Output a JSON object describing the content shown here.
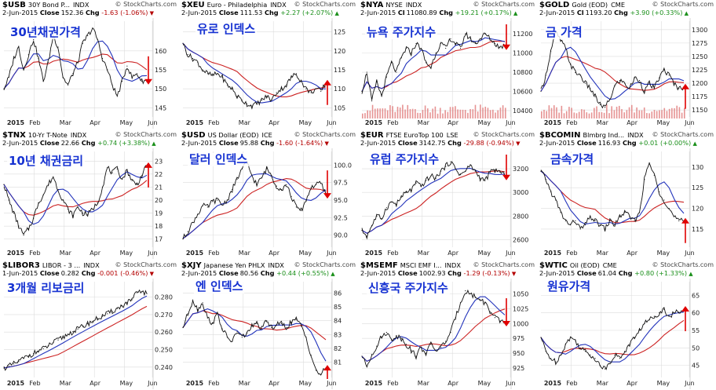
{
  "colors": {
    "price": "#111111",
    "ma_fast": "#2233bb",
    "ma_slow": "#cc2222",
    "volume": "#e28080",
    "arrow": "#e00000",
    "korean_label": "#1733d2",
    "grid": "#dcdcdc"
  },
  "watermark": "© StockCharts.com",
  "charts": [
    {
      "symbol": "$USB",
      "name": "30Y Bond P...",
      "exchange": "INDX",
      "date": "2-Jun-2015",
      "close_label": "Close",
      "close": "152.36",
      "chg_label": "Chg",
      "chg": "-1.63 (-1.06%)",
      "chg_dir": "down",
      "korean_label": "30년채권가격",
      "chart_data": {
        "type": "line",
        "title": "30Y Bond P...",
        "x_labels": [
          "2015",
          "Feb",
          "Mar",
          "Apr",
          "May",
          "Jun"
        ],
        "y_ticks": [
          "160",
          "155",
          "150",
          "145"
        ],
        "ylim": [
          143,
          167
        ],
        "series": [
          {
            "values": [
              150,
              153,
              158,
              161,
              155,
              159,
              163,
              158,
              152,
              157,
              164,
              161,
              153,
              151,
              154,
              157,
              162,
              164,
              166,
              163,
              158,
              155,
              151,
              148,
              152,
              156,
              153,
              154,
              152,
              152.36
            ]
          }
        ],
        "arrow": "down",
        "volume": false
      }
    },
    {
      "symbol": "$XEU",
      "name": "Euro - Philadelphia",
      "exchange": "INDX",
      "date": "2-Jun-2015",
      "close_label": "Close",
      "close": "111.53",
      "chg_label": "Chg",
      "chg": "+2.27 (+2.07%)",
      "chg_dir": "up",
      "korean_label": "유로 인덱스",
      "chart_data": {
        "type": "line",
        "title": "Euro - Philadelphia",
        "x_labels": [
          "2015",
          "Feb",
          "Mar",
          "Apr",
          "May",
          "Jun"
        ],
        "y_ticks": [
          "125",
          "120",
          "115",
          "110",
          "105"
        ],
        "ylim": [
          103,
          127
        ],
        "series": [
          {
            "values": [
              122,
              119,
              118,
              117,
              115,
              114,
              113.5,
              114,
              113,
              111,
              110,
              108,
              107,
              106,
              105.5,
              106,
              107,
              108,
              107,
              109,
              110,
              111,
              113,
              114,
              112,
              110,
              109,
              110,
              109.3,
              111.53
            ]
          }
        ],
        "arrow": "up",
        "volume": false
      }
    },
    {
      "symbol": "$NYA",
      "name": "NYSE",
      "exchange": "INDX",
      "date": "2-Jun-2015",
      "close_label": "Cl",
      "close": "11080.89",
      "chg_label": "Chg",
      "chg": "+19.21 (+0.17%)",
      "chg_dir": "up",
      "korean_label": "뉴욕 주가지수",
      "chart_data": {
        "type": "line",
        "title": "NYSE",
        "x_labels": [
          "2015",
          "Feb",
          "Mar",
          "Apr",
          "May",
          "Jun"
        ],
        "y_ticks": [
          "11200",
          "11000",
          "10800",
          "10600",
          "10400"
        ],
        "ylim": [
          10350,
          11300
        ],
        "series": [
          {
            "values": [
              10600,
              10800,
              10500,
              10700,
              10550,
              10750,
              10900,
              10800,
              10950,
              11050,
              11000,
              11100,
              11050,
              10900,
              10850,
              11000,
              11100,
              11050,
              11150,
              11100,
              11050,
              11200,
              11150,
              11100,
              11150,
              11200,
              11150,
              11100,
              11060,
              11080.89
            ]
          }
        ],
        "arrow": "down",
        "volume": true
      }
    },
    {
      "symbol": "$GOLD",
      "name": "Gold (EOD)",
      "exchange": "CME",
      "date": "2-Jun-2015",
      "close_label": "Cl",
      "close": "1193.20",
      "chg_label": "Chg",
      "chg": "+3.90 (+0.33%)",
      "chg_dir": "up",
      "korean_label": "금 가격",
      "chart_data": {
        "type": "line",
        "title": "Gold (EOD)",
        "x_labels": [
          "2015",
          "Feb",
          "Mar",
          "Apr",
          "May",
          "Jun"
        ],
        "y_ticks": [
          "1300",
          "1275",
          "1250",
          "1225",
          "1200",
          "1175",
          "1150"
        ],
        "ylim": [
          1140,
          1310
        ],
        "series": [
          {
            "values": [
              1185,
              1215,
              1260,
              1295,
              1280,
              1265,
              1235,
              1220,
              1215,
              1200,
              1190,
              1175,
              1160,
              1155,
              1170,
              1195,
              1205,
              1200,
              1190,
              1210,
              1205,
              1185,
              1200,
              1190,
              1210,
              1225,
              1215,
              1200,
              1190,
              1193.2
            ]
          }
        ],
        "arrow": "up",
        "volume": true
      }
    },
    {
      "symbol": "$TNX",
      "name": "10-Yr T-Note",
      "exchange": "INDX",
      "date": "2-Jun-2015",
      "close_label": "Close",
      "close": "22.66",
      "chg_label": "Chg",
      "chg": "+0.74 (+3.38%)",
      "chg_dir": "up",
      "korean_label": "10년 채권금리",
      "chart_data": {
        "type": "line",
        "title": "10-Yr T-Note",
        "x_labels": [
          "2015",
          "Feb",
          "Mar",
          "Apr",
          "May",
          "Jun"
        ],
        "y_ticks": [
          "23",
          "22",
          "21",
          "20",
          "19",
          "18",
          "17"
        ],
        "ylim": [
          16.5,
          23.5
        ],
        "series": [
          {
            "values": [
              21.2,
              20.0,
              19.0,
              18.0,
              17.3,
              17.8,
              18.6,
              19.8,
              20.4,
              21.2,
              21.8,
              20.8,
              20.0,
              19.3,
              18.8,
              19.5,
              19.0,
              18.9,
              19.3,
              19.8,
              21.0,
              22.5,
              22.1,
              22.4,
              21.6,
              22.3,
              21.5,
              21.2,
              21.9,
              22.66
            ]
          }
        ],
        "arrow": "up",
        "volume": false
      }
    },
    {
      "symbol": "$USD",
      "name": "US Dollar (EOD)",
      "exchange": "ICE",
      "date": "2-Jun-2015",
      "close_label": "Close",
      "close": "95.88",
      "chg_label": "Chg",
      "chg": "-1.60 (-1.64%)",
      "chg_dir": "down",
      "korean_label": "달러 인덱스",
      "chart_data": {
        "type": "line",
        "title": "US Dollar (EOD)",
        "x_labels": [
          "2015",
          "Feb",
          "Mar",
          "Apr",
          "May",
          "Jun"
        ],
        "y_ticks": [
          "100.0",
          "97.5",
          "95.0",
          "92.5",
          "90.0"
        ],
        "ylim": [
          88.5,
          101.5
        ],
        "series": [
          {
            "values": [
              89.5,
              90.5,
              91.8,
              93.0,
              94.2,
              94.0,
              94.8,
              95.0,
              94.3,
              95.0,
              96.5,
              98.0,
              99.5,
              100.3,
              98.5,
              97.2,
              98.2,
              99.5,
              98.5,
              97.0,
              96.5,
              97.2,
              95.5,
              94.0,
              93.5,
              95.0,
              96.8,
              97.2,
              97.4,
              95.88
            ]
          }
        ],
        "arrow": "down",
        "volume": false
      }
    },
    {
      "symbol": "$EUR",
      "name": "FTSE EuroTop 100",
      "exchange": "LSE",
      "date": "2-Jun-2015",
      "close_label": "Close",
      "close": "3142.75",
      "chg_label": "Chg",
      "chg": "-29.88 (-0.94%)",
      "chg_dir": "down",
      "korean_label": "유럽 주가지수",
      "chart_data": {
        "type": "line",
        "title": "FTSE EuroTop 100",
        "x_labels": [
          "2015",
          "Feb",
          "Mar",
          "Apr",
          "May",
          "Jun"
        ],
        "y_ticks": [
          "3200",
          "3000",
          "2800",
          "2600"
        ],
        "ylim": [
          2550,
          3320
        ],
        "series": [
          {
            "values": [
              2680,
              2630,
              2720,
              2800,
              2780,
              2870,
              2920,
              2900,
              2960,
              3000,
              3020,
              3080,
              3050,
              3100,
              3140,
              3120,
              3180,
              3220,
              3260,
              3200,
              3150,
              3180,
              3230,
              3180,
              3120,
              3100,
              3170,
              3190,
              3173,
              3142.75
            ]
          }
        ],
        "arrow": "down",
        "volume": false
      }
    },
    {
      "symbol": "$BCOMIN",
      "name": "Blmbrg Ind...",
      "exchange": "INDX",
      "date": "2-Jun-2015",
      "close_label": "Close",
      "close": "116.93",
      "chg_label": "Chg",
      "chg": "+0.01 (+0.00%)",
      "chg_dir": "up",
      "korean_label": "금속가격",
      "chart_data": {
        "type": "line",
        "title": "Blmbrg Ind...",
        "x_labels": [
          "2015",
          "Feb",
          "Mar",
          "Apr",
          "May",
          "Jun"
        ],
        "y_ticks": [
          "130",
          "125",
          "120",
          "115"
        ],
        "ylim": [
          111,
          133
        ],
        "series": [
          {
            "values": [
              129,
              127,
              124,
              122,
              119,
              117,
              116,
              117,
              115,
              116,
              118,
              117,
              116,
              115,
              117,
              116,
              118,
              119,
              118,
              117,
              119,
              127,
              131,
              128,
              124,
              122,
              120,
              118,
              117,
              116.93
            ]
          }
        ],
        "arrow": "up",
        "volume": false
      }
    },
    {
      "symbol": "$LIBOR3",
      "name": "LIBOR - 3 ...",
      "exchange": "INDX",
      "date": "1-Jun-2015",
      "close_label": "Close",
      "close": "0.282",
      "chg_label": "Chg",
      "chg": "-0.001 (-0.46%)",
      "chg_dir": "down",
      "korean_label": "3개월 리보금리",
      "chart_data": {
        "type": "line",
        "title": "LIBOR - 3 ...",
        "x_labels": [
          "2015",
          "Feb",
          "Mar",
          "Apr",
          "May",
          "Jun"
        ],
        "y_ticks": [
          "0.280",
          "0.270",
          "0.260",
          "0.250",
          "0.240"
        ],
        "ylim": [
          0.235,
          0.287
        ],
        "series": [
          {
            "values": [
              0.2395,
              0.2405,
              0.2418,
              0.2432,
              0.245,
              0.2465,
              0.2478,
              0.2492,
              0.2505,
              0.2522,
              0.254,
              0.2555,
              0.257,
              0.2588,
              0.2602,
              0.2618,
              0.2632,
              0.2648,
              0.2662,
              0.2678,
              0.269,
              0.2705,
              0.2718,
              0.2735,
              0.275,
              0.2768,
              0.2785,
              0.2825,
              0.2832,
              0.282
            ]
          }
        ],
        "arrow": "none",
        "volume": false
      }
    },
    {
      "symbol": "$XJY",
      "name": "Japanese Yen PHLX",
      "exchange": "INDX",
      "date": "2-Jun-2015",
      "close_label": "Close",
      "close": "80.56",
      "chg_label": "Chg",
      "chg": "+0.44 (+0.55%)",
      "chg_dir": "up",
      "korean_label": "엔 인덱스",
      "chart_data": {
        "type": "line",
        "title": "Japanese Yen PHLX",
        "x_labels": [
          "2015",
          "Feb",
          "Mar",
          "Apr",
          "May",
          "Jun"
        ],
        "y_ticks": [
          "86",
          "85",
          "84",
          "83",
          "82",
          "81"
        ],
        "ylim": [
          80,
          86.6
        ],
        "series": [
          {
            "values": [
              83.5,
              84.5,
              85.5,
              84.8,
              85.3,
              84.2,
              83.8,
              84.5,
              83.4,
              82.8,
              82.5,
              83.2,
              82.8,
              83.1,
              83.6,
              83.8,
              83.4,
              84.0,
              83.5,
              83.7,
              83.8,
              83.5,
              83.9,
              84.1,
              83.6,
              82.8,
              81.5,
              80.4,
              80.1,
              80.56
            ]
          }
        ],
        "arrow": "up",
        "volume": false
      }
    },
    {
      "symbol": "$MSEMF",
      "name": "MSCI EMF I...",
      "exchange": "INDX",
      "date": "2-Jun-2015",
      "close_label": "Close",
      "close": "1002.93",
      "chg_label": "Chg",
      "chg": "-1.29 (-0.13%)",
      "chg_dir": "down",
      "korean_label": "신흥국 주가지수",
      "chart_data": {
        "type": "line",
        "title": "MSCI EMF I...",
        "x_labels": [
          "2015",
          "Feb",
          "Mar",
          "Apr",
          "May",
          "Jun"
        ],
        "y_ticks": [
          "1050",
          "1025",
          "1000",
          "975",
          "950",
          "925"
        ],
        "ylim": [
          912,
          1065
        ],
        "series": [
          {
            "values": [
              945,
              928,
              948,
              962,
              978,
              985,
              972,
              980,
              975,
              965,
              955,
              945,
              960,
              950,
              965,
              955,
              960,
              970,
              985,
              1010,
              1035,
              1055,
              1050,
              1045,
              1040,
              1035,
              1020,
              1010,
              1004,
              1002.93
            ]
          }
        ],
        "arrow": "down",
        "volume": false
      }
    },
    {
      "symbol": "$WTIC",
      "name": "Oil (EOD)",
      "exchange": "CME",
      "date": "2-Jun-2015",
      "close_label": "Close",
      "close": "61.04",
      "chg_label": "Chg",
      "chg": "+0.80 (+1.33%)",
      "chg_dir": "up",
      "korean_label": "원유가격",
      "chart_data": {
        "type": "line",
        "title": "Oil (EOD)",
        "x_labels": [
          "2015",
          "Feb",
          "Mar",
          "Apr",
          "May",
          "Jun"
        ],
        "y_ticks": [
          "65",
          "60",
          "55",
          "50",
          "45"
        ],
        "ylim": [
          42,
          68
        ],
        "series": [
          {
            "values": [
              53,
              49,
              47,
              46,
              48,
              51,
              53,
              52,
              50,
              49,
              48,
              47,
              45,
              44,
              46,
              48,
              47,
              49,
              51,
              53,
              55,
              57,
              58,
              59,
              60,
              61,
              59,
              60,
              60.2,
              61.04
            ]
          }
        ],
        "arrow": "up",
        "volume": false
      }
    }
  ]
}
